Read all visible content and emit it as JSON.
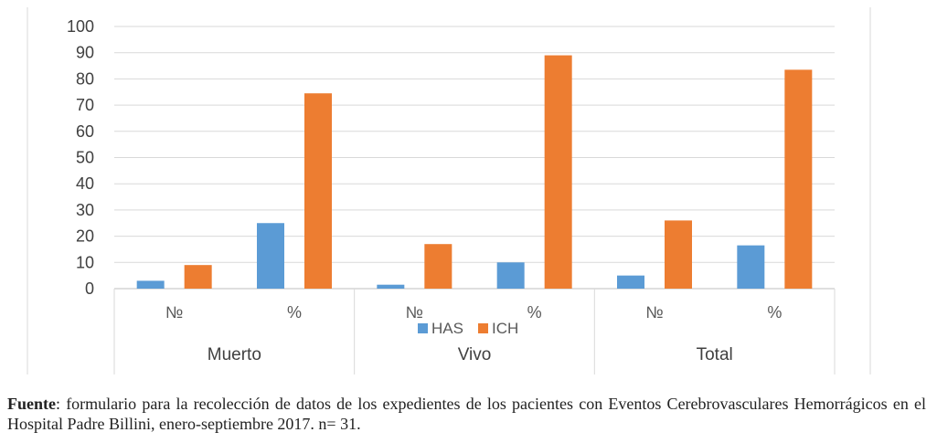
{
  "chart_data": {
    "type": "bar",
    "groups": [
      {
        "label": "Muerto",
        "categories": [
          "№",
          "%"
        ]
      },
      {
        "label": "Vivo",
        "categories": [
          "№",
          "%"
        ]
      },
      {
        "label": "Total",
        "categories": [
          "№",
          "%"
        ]
      }
    ],
    "series": [
      {
        "name": "HAS",
        "color": "#5B9BD5",
        "values": [
          3,
          25,
          1.5,
          10,
          5,
          16.5
        ]
      },
      {
        "name": "ICH",
        "color": "#ED7D31",
        "values": [
          9,
          74.5,
          17,
          89,
          26,
          83.5
        ]
      }
    ],
    "ylim": [
      0,
      100
    ],
    "yticks": [
      "0",
      "10",
      "20",
      "30",
      "40",
      "50",
      "60",
      "70",
      "80",
      "90",
      "100"
    ],
    "grid": true,
    "legend_position": "bottom"
  },
  "caption": {
    "label": "Fuente",
    "text": ": formulario para la recolección de datos de los expedientes de los pacientes con Eventos Cerebrovasculares Hemorrágicos en el Hospital Padre Billini, enero-septiembre 2017. n= 31."
  }
}
